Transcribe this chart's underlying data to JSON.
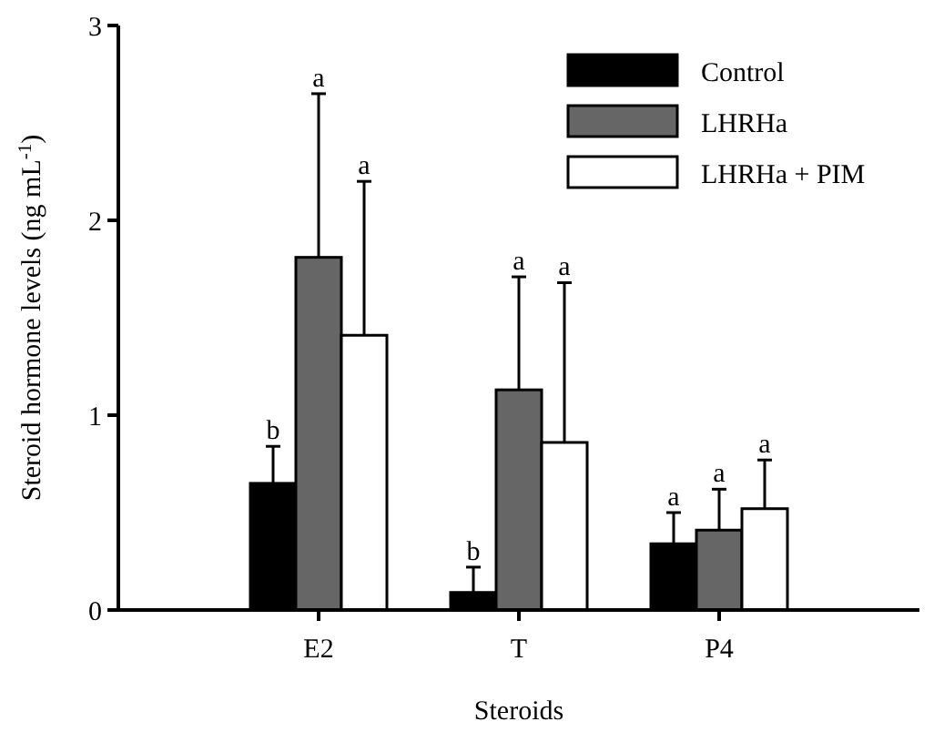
{
  "chart_data": {
    "type": "bar",
    "xlabel": "Steroids",
    "ylabel": "Steroid hormone levels (ng mL$^{-1}$)",
    "categories": [
      "E2",
      "T",
      "P4"
    ],
    "series": [
      {
        "name": "Control",
        "color": "#000000",
        "values": [
          0.65,
          0.09,
          0.34
        ],
        "errors": [
          [
            0.65,
            0.84
          ],
          [
            0.09,
            0.22
          ],
          [
            0.34,
            0.5
          ]
        ]
      },
      {
        "name": "LHRHa",
        "color": "#666666",
        "values": [
          1.81,
          1.13,
          0.41
        ],
        "errors": [
          [
            1.81,
            2.65
          ],
          [
            1.13,
            1.71
          ],
          [
            0.41,
            0.62
          ]
        ]
      },
      {
        "name": "LHRHa + PIM",
        "color": "#ffffff",
        "values": [
          1.41,
          0.86,
          0.52
        ],
        "errors": [
          [
            1.41,
            2.2
          ],
          [
            0.86,
            1.68
          ],
          [
            0.52,
            0.77
          ]
        ]
      }
    ],
    "annotations": [
      "b",
      "a",
      "a",
      "b",
      "a",
      "a",
      "a",
      "a",
      "a"
    ],
    "ylim": [
      0,
      3
    ],
    "yticks": [
      0,
      1,
      2,
      3
    ],
    "grid": false,
    "legend": "top right"
  }
}
